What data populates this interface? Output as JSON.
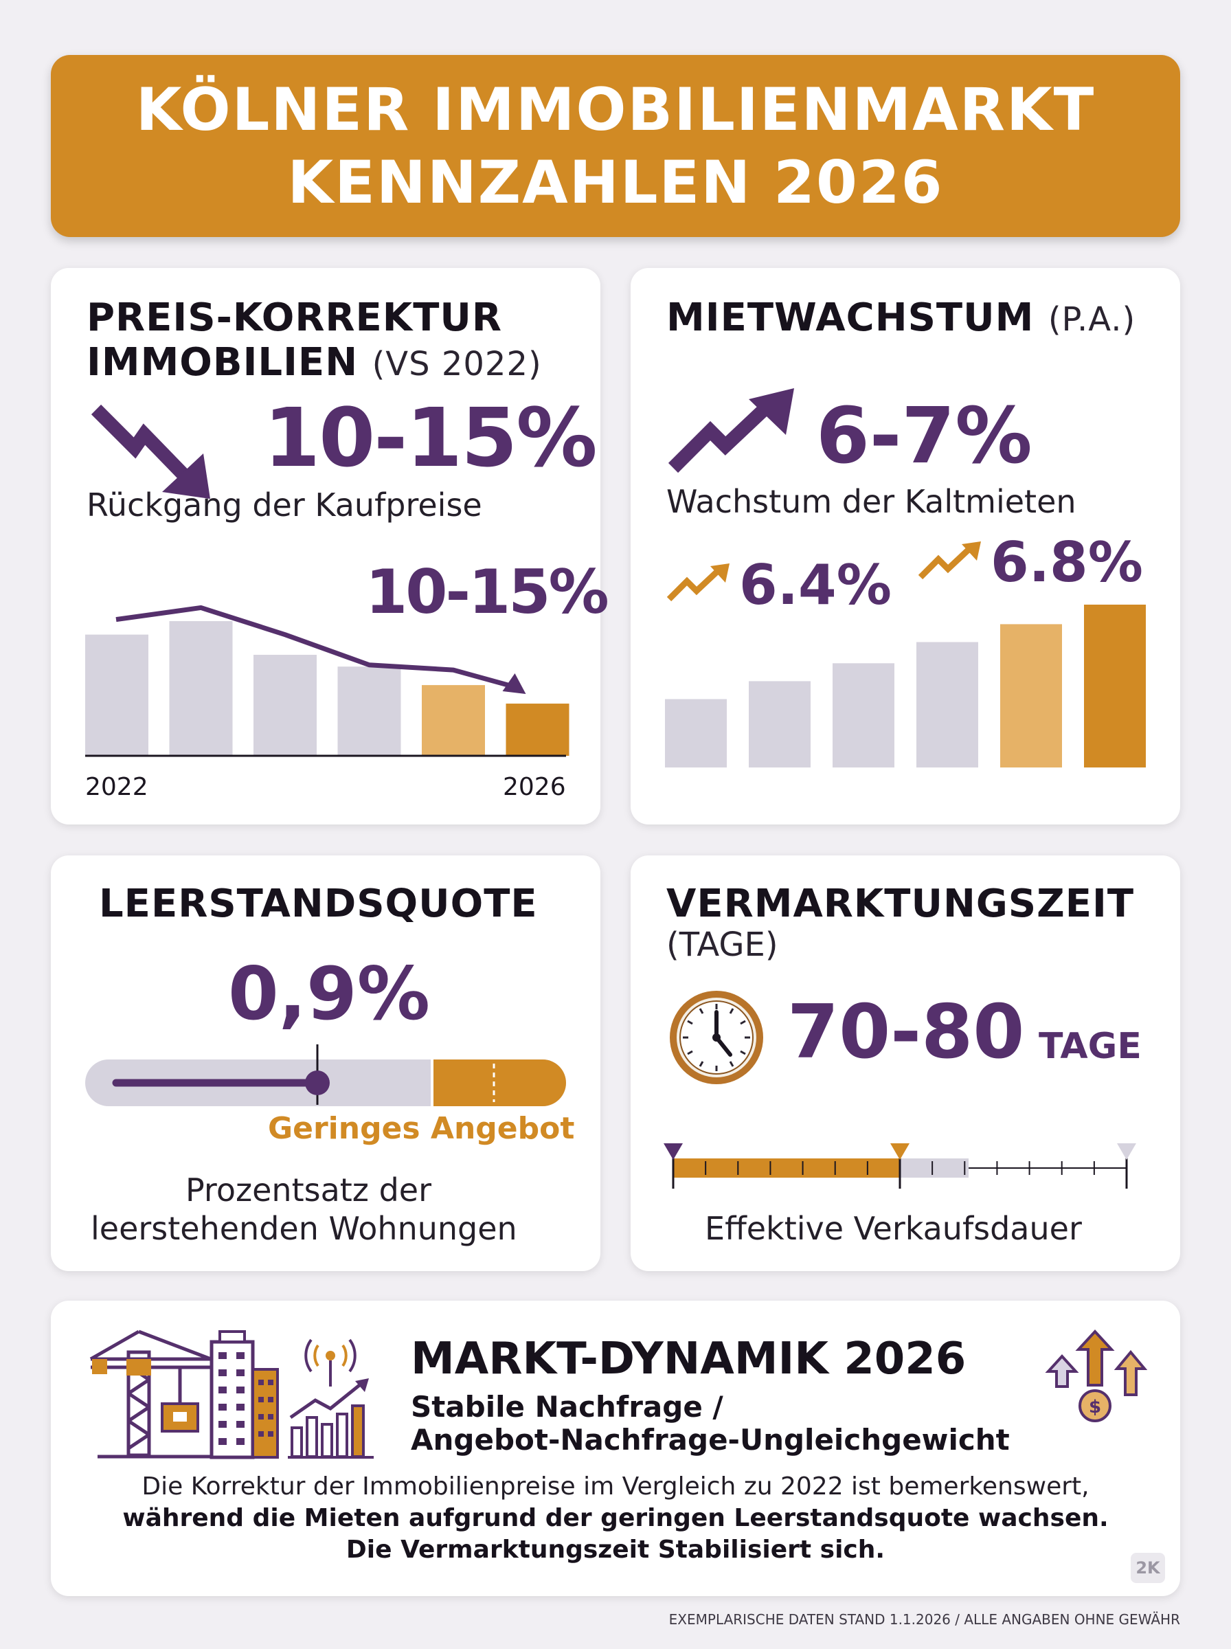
{
  "banner": {
    "line1": "KÖLNER IMMOBILIENMARKT",
    "line2": "KENNZAHLEN 2026"
  },
  "price_card": {
    "title_line1": "PREIS-KORREKTUR",
    "title_line2": "IMMOBILIEN",
    "title_suffix": "(VS 2022)",
    "big_value": "10-15%",
    "caption": "Rückgang der Kaufpreise",
    "chart_label": "10-15%",
    "x_start": "2022",
    "x_end": "2026",
    "bars": [
      0.72,
      0.8,
      0.6,
      0.53,
      0.42,
      0.31
    ],
    "trend": [
      0.72,
      0.79,
      0.63,
      0.45,
      0.42,
      0.31
    ],
    "icon": "trend-down-arrow-icon"
  },
  "rent_card": {
    "title": "MIETWACHSTUM",
    "title_suffix": "(P.A.)",
    "big_value": "6-7%",
    "caption": "Wachstum der Kaltmieten",
    "label_a": "6.4%",
    "label_b": "6.8%",
    "bars": [
      0.42,
      0.53,
      0.64,
      0.77,
      0.88,
      1.0
    ],
    "icon": "trend-up-arrow-icon"
  },
  "vacancy_card": {
    "title": "LEERSTANDSQUOTE",
    "big_value": "0,9%",
    "marker_fraction": 0.5,
    "note": "Geringes Angebot",
    "caption_line1": "Prozentsatz der",
    "caption_line2": "leerstehenden Wohnungen"
  },
  "marketing_card": {
    "title": "VERMARKTUNGSZEIT",
    "title_line2": "(TAGE)",
    "big_value": "70-80",
    "unit": "TAGE",
    "progress_fraction": 0.5,
    "caption": "Effektive Verkaufsdauer",
    "icon": "clock-icon"
  },
  "dynamics_card": {
    "title": "MARKT-DYNAMIK 2026",
    "subtitle_line1": "Stabile Nachfrage /",
    "subtitle_line2": "Angebot-Nachfrage-Ungleichgewicht",
    "text_line1": "Die Korrektur der Immobilienpreise im Vergleich zu 2022 ist bemerkenswert,",
    "text_line2": "während die Mieten aufgrund der geringen Leerstandsquote wachsen.",
    "text_line3": "Die Vermarktungszeit Stabilisiert sich.",
    "watermark": "2K",
    "icons": [
      "construction-crane-icon",
      "building-icon",
      "growth-chart-icon",
      "price-arrows-icon"
    ]
  },
  "footer": "EXEMPLARISCHE DATEN STAND 1.1.2026 / ALLE ANGABEN OHNE GEWÄHR",
  "colors": {
    "orange": "#d18a24",
    "light_orange": "#e6b267",
    "purple": "#55306c",
    "grey_bar": "#d6d3de"
  }
}
